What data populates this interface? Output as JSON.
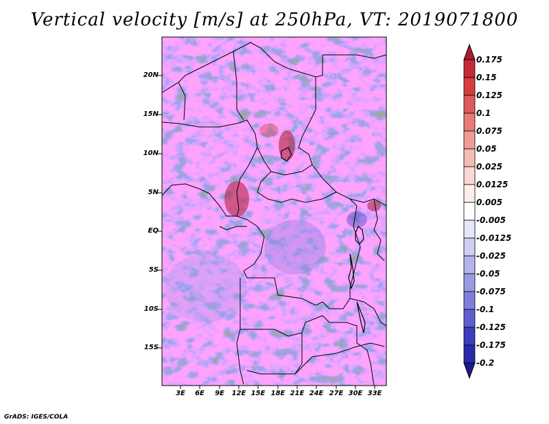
{
  "title": "Vertical velocity [m/s] at 250hPa, VT: 2019071800",
  "credit": "GrADS: IGES/COLA",
  "lat_labels": [
    "20N",
    "15N",
    "10N",
    "5N",
    "EQ",
    "5S",
    "10S",
    "15S"
  ],
  "lon_labels": [
    "3E",
    "6E",
    "9E",
    "12E",
    "15E",
    "18E",
    "21E",
    "24E",
    "27E",
    "30E",
    "33E"
  ],
  "colorbar": {
    "labels": [
      "0.175",
      "0.15",
      "0.125",
      "0.1",
      "0.075",
      "0.05",
      "0.025",
      "0.0125",
      "0.005",
      "-0.005",
      "-0.0125",
      "-0.025",
      "-0.05",
      "-0.075",
      "-0.1",
      "-0.125",
      "-0.175",
      "-0.2"
    ],
    "colors": [
      "#b2182b",
      "#c62b35",
      "#d73c3f",
      "#e0595a",
      "#e97a78",
      "#f09c98",
      "#f6bcb8",
      "#fad8d5",
      "#fdeeec",
      "#ffffff",
      "#e7e7fa",
      "#cfcff3",
      "#b4b4ec",
      "#9a9ae4",
      "#7f7fdb",
      "#5e5ece",
      "#3d3dbd",
      "#2a2aa8",
      "#1a1a8c"
    ]
  },
  "map": {
    "lat_range": [
      -19,
      25
    ],
    "lon_range": [
      0.5,
      35
    ]
  }
}
